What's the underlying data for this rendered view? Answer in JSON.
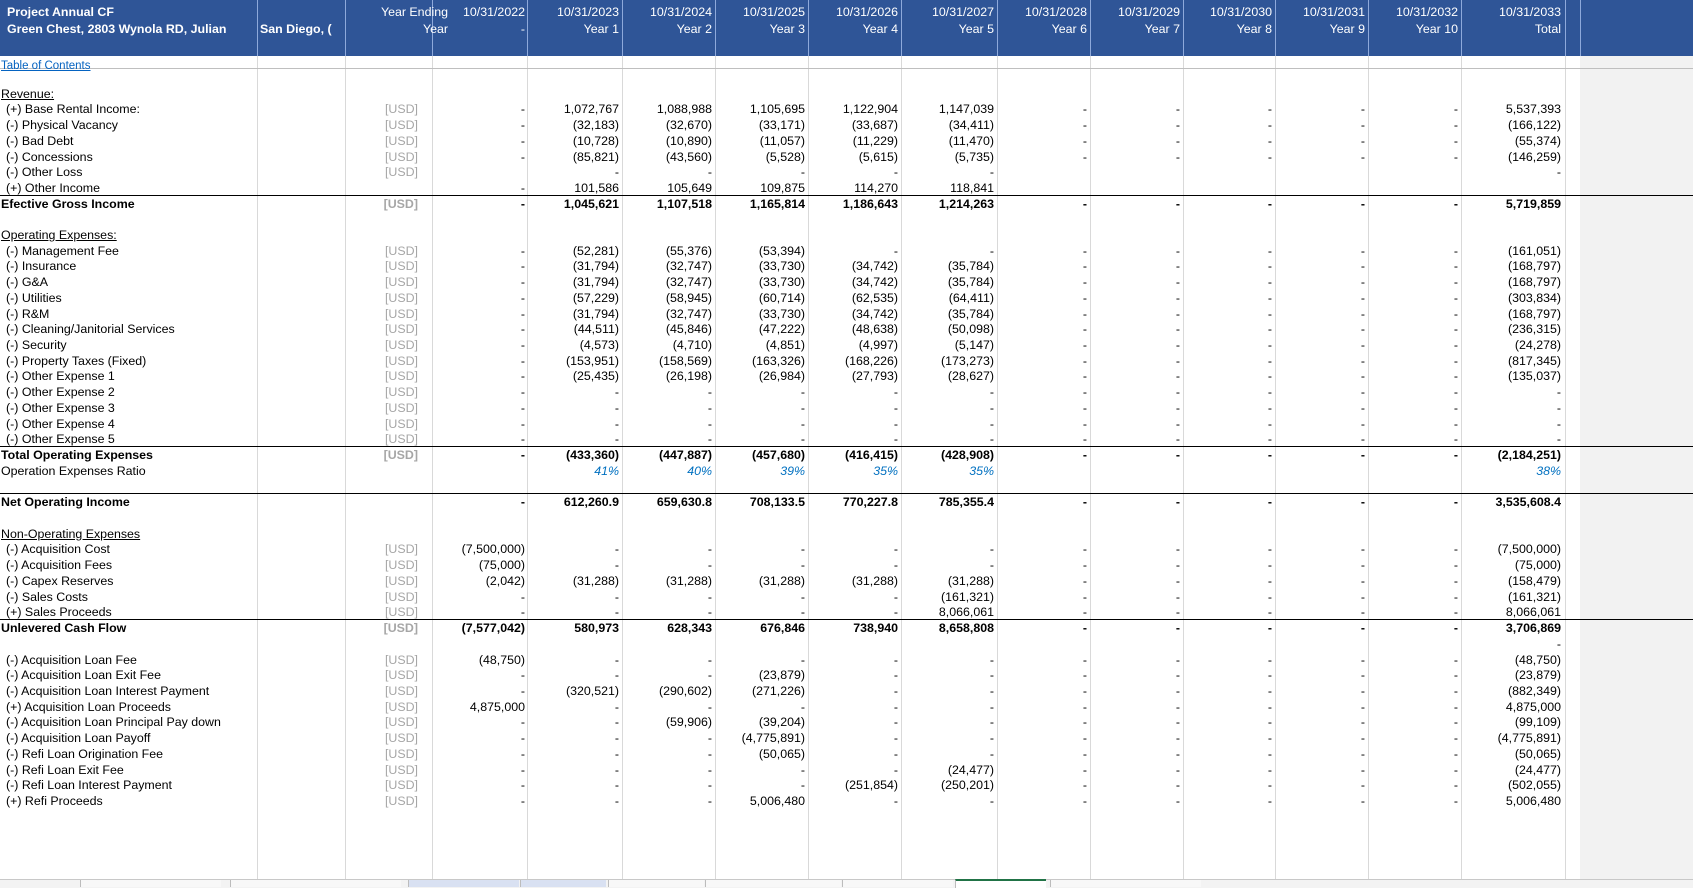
{
  "header": {
    "title": "Project Annual CF",
    "address": "Green Chest, 2803 Wynola RD, Julian",
    "city": "San Diego, (",
    "unit_header_1": "Year Ending",
    "unit_header_2": "Year",
    "periods": [
      {
        "date": "10/31/2022",
        "label": "-"
      },
      {
        "date": "10/31/2023",
        "label": "Year 1"
      },
      {
        "date": "10/31/2024",
        "label": "Year 2"
      },
      {
        "date": "10/31/2025",
        "label": "Year 3"
      },
      {
        "date": "10/31/2026",
        "label": "Year 4"
      },
      {
        "date": "10/31/2027",
        "label": "Year 5"
      },
      {
        "date": "10/31/2028",
        "label": "Year 6"
      },
      {
        "date": "10/31/2029",
        "label": "Year 7"
      },
      {
        "date": "10/31/2030",
        "label": "Year 8"
      },
      {
        "date": "10/31/2031",
        "label": "Year 9"
      },
      {
        "date": "10/31/2032",
        "label": "Year 10"
      },
      {
        "date": "10/31/2033",
        "label": "Total"
      }
    ]
  },
  "links": {
    "toc": "Table of Contents"
  },
  "colors": {
    "header_bg": "#2f5597",
    "ratio_text": "#0070c0",
    "unit_text": "#a6a6a6",
    "total_col_bg": "#f2f2f2"
  },
  "rows": [
    {
      "type": "section",
      "label": "Revenue:"
    },
    {
      "label": "(+) Base Rental Income:",
      "unit": "[USD]",
      "values": [
        "-",
        "1,072,767",
        "1,088,988",
        "1,105,695",
        "1,122,904",
        "1,147,039",
        "-",
        "-",
        "-",
        "-",
        "-",
        "5,537,393"
      ]
    },
    {
      "label": "(-) Physical Vacancy",
      "unit": "[USD]",
      "values": [
        "-",
        "(32,183)",
        "(32,670)",
        "(33,171)",
        "(33,687)",
        "(34,411)",
        "-",
        "-",
        "-",
        "-",
        "-",
        "(166,122)"
      ]
    },
    {
      "label": "(-) Bad Debt",
      "unit": "[USD]",
      "values": [
        "-",
        "(10,728)",
        "(10,890)",
        "(11,057)",
        "(11,229)",
        "(11,470)",
        "-",
        "-",
        "-",
        "-",
        "-",
        "(55,374)"
      ]
    },
    {
      "label": "(-) Concessions",
      "unit": "[USD]",
      "values": [
        "-",
        "(85,821)",
        "(43,560)",
        "(5,528)",
        "(5,615)",
        "(5,735)",
        "-",
        "-",
        "-",
        "-",
        "-",
        "(146,259)"
      ]
    },
    {
      "label": "(-) Other Loss",
      "unit": "[USD]",
      "values": [
        "",
        "-",
        "-",
        "-",
        "-",
        "-",
        "",
        "",
        "",
        "",
        "",
        "-"
      ]
    },
    {
      "label": "(+) Other Income",
      "unit": "",
      "values": [
        "-",
        "101,586",
        "105,649",
        "109,875",
        "114,270",
        "118,841",
        "",
        "",
        "",
        "",
        "",
        ""
      ]
    },
    {
      "type": "total",
      "label": "Efective Gross Income",
      "unit": "[USD]",
      "values": [
        "-",
        "1,045,621",
        "1,107,518",
        "1,165,814",
        "1,186,643",
        "1,214,263",
        "-",
        "-",
        "-",
        "-",
        "-",
        "5,719,859"
      ]
    },
    {
      "type": "blank"
    },
    {
      "type": "section",
      "label": "Operating Expenses:"
    },
    {
      "label": "(-) Management Fee",
      "unit": "[USD]",
      "values": [
        "-",
        "(52,281)",
        "(55,376)",
        "(53,394)",
        "-",
        "-",
        "-",
        "-",
        "-",
        "-",
        "-",
        "(161,051)"
      ]
    },
    {
      "label": "(-) Insurance",
      "unit": "[USD]",
      "values": [
        "-",
        "(31,794)",
        "(32,747)",
        "(33,730)",
        "(34,742)",
        "(35,784)",
        "-",
        "-",
        "-",
        "-",
        "-",
        "(168,797)"
      ]
    },
    {
      "label": "(-) G&A",
      "unit": "[USD]",
      "values": [
        "-",
        "(31,794)",
        "(32,747)",
        "(33,730)",
        "(34,742)",
        "(35,784)",
        "-",
        "-",
        "-",
        "-",
        "-",
        "(168,797)"
      ]
    },
    {
      "label": "(-) Utilities",
      "unit": "[USD]",
      "values": [
        "-",
        "(57,229)",
        "(58,945)",
        "(60,714)",
        "(62,535)",
        "(64,411)",
        "-",
        "-",
        "-",
        "-",
        "-",
        "(303,834)"
      ]
    },
    {
      "label": "(-) R&M",
      "unit": "[USD]",
      "values": [
        "-",
        "(31,794)",
        "(32,747)",
        "(33,730)",
        "(34,742)",
        "(35,784)",
        "-",
        "-",
        "-",
        "-",
        "-",
        "(168,797)"
      ]
    },
    {
      "label": "(-) Cleaning/Janitorial Services",
      "unit": "[USD]",
      "values": [
        "-",
        "(44,511)",
        "(45,846)",
        "(47,222)",
        "(48,638)",
        "(50,098)",
        "-",
        "-",
        "-",
        "-",
        "-",
        "(236,315)"
      ]
    },
    {
      "label": "(-) Security",
      "unit": "[USD]",
      "values": [
        "-",
        "(4,573)",
        "(4,710)",
        "(4,851)",
        "(4,997)",
        "(5,147)",
        "-",
        "-",
        "-",
        "-",
        "-",
        "(24,278)"
      ]
    },
    {
      "label": "(-) Property Taxes (Fixed)",
      "unit": "[USD]",
      "values": [
        "-",
        "(153,951)",
        "(158,569)",
        "(163,326)",
        "(168,226)",
        "(173,273)",
        "-",
        "-",
        "-",
        "-",
        "-",
        "(817,345)"
      ]
    },
    {
      "label": "(-) Other Expense 1",
      "unit": "[USD]",
      "values": [
        "-",
        "(25,435)",
        "(26,198)",
        "(26,984)",
        "(27,793)",
        "(28,627)",
        "-",
        "-",
        "-",
        "-",
        "-",
        "(135,037)"
      ]
    },
    {
      "label": "(-) Other Expense 2",
      "unit": "[USD]",
      "values": [
        "-",
        "-",
        "-",
        "-",
        "-",
        "-",
        "-",
        "-",
        "-",
        "-",
        "-",
        "-"
      ]
    },
    {
      "label": "(-) Other Expense 3",
      "unit": "[USD]",
      "values": [
        "-",
        "-",
        "-",
        "-",
        "-",
        "-",
        "-",
        "-",
        "-",
        "-",
        "-",
        "-"
      ]
    },
    {
      "label": "(-) Other Expense 4",
      "unit": "[USD]",
      "values": [
        "-",
        "-",
        "-",
        "-",
        "-",
        "-",
        "-",
        "-",
        "-",
        "-",
        "-",
        "-"
      ]
    },
    {
      "label": "(-) Other Expense 5",
      "unit": "[USD]",
      "values": [
        "-",
        "-",
        "-",
        "-",
        "-",
        "-",
        "-",
        "-",
        "-",
        "-",
        "-",
        "-"
      ]
    },
    {
      "type": "total",
      "label": "Total Operating Expenses",
      "unit": "[USD]",
      "values": [
        "-",
        "(433,360)",
        "(447,887)",
        "(457,680)",
        "(416,415)",
        "(428,908)",
        "-",
        "-",
        "-",
        "-",
        "-",
        "(2,184,251)"
      ]
    },
    {
      "type": "ratio",
      "label": "Operation Expenses Ratio",
      "unit": "",
      "values": [
        "",
        "41%",
        "40%",
        "39%",
        "35%",
        "35%",
        "",
        "",
        "",
        "",
        "",
        "38%"
      ]
    },
    {
      "type": "blank"
    },
    {
      "type": "total",
      "label": "Net Operating Income",
      "unit": "",
      "values": [
        "-",
        "612,260.9",
        "659,630.8",
        "708,133.5",
        "770,227.8",
        "785,355.4",
        "-",
        "-",
        "-",
        "-",
        "-",
        "3,535,608.4"
      ]
    },
    {
      "type": "blank"
    },
    {
      "type": "section",
      "label": "Non-Operating Expenses"
    },
    {
      "label": "(-) Acquisition Cost",
      "unit": "[USD]",
      "values": [
        "(7,500,000)",
        "-",
        "-",
        "-",
        "-",
        "-",
        "-",
        "-",
        "-",
        "-",
        "-",
        "(7,500,000)"
      ]
    },
    {
      "label": "(-) Acquisition Fees",
      "unit": "[USD]",
      "values": [
        "(75,000)",
        "-",
        "-",
        "-",
        "-",
        "-",
        "-",
        "-",
        "-",
        "-",
        "-",
        "(75,000)"
      ]
    },
    {
      "label": "(-) Capex Reserves",
      "unit": "[USD]",
      "values": [
        "(2,042)",
        "(31,288)",
        "(31,288)",
        "(31,288)",
        "(31,288)",
        "(31,288)",
        "-",
        "-",
        "-",
        "-",
        "-",
        "(158,479)"
      ]
    },
    {
      "label": "(-) Sales Costs",
      "unit": "[USD]",
      "values": [
        "-",
        "-",
        "-",
        "-",
        "-",
        "(161,321)",
        "-",
        "-",
        "-",
        "-",
        "-",
        "(161,321)"
      ]
    },
    {
      "label": "(+) Sales Proceeds",
      "unit": "[USD]",
      "values": [
        "-",
        "-",
        "-",
        "-",
        "-",
        "8,066,061",
        "-",
        "-",
        "-",
        "-",
        "-",
        "8,066,061"
      ]
    },
    {
      "type": "total",
      "label": "Unlevered Cash Flow",
      "unit": "[USD]",
      "values": [
        "(7,577,042)",
        "580,973",
        "628,343",
        "676,846",
        "738,940",
        "8,658,808",
        "-",
        "-",
        "-",
        "-",
        "-",
        "3,706,869"
      ]
    },
    {
      "type": "blank",
      "values": [
        "",
        "",
        "",
        "",
        "",
        "",
        "",
        "",
        "",
        "",
        "",
        "-"
      ]
    },
    {
      "label": "(-) Acquisition Loan Fee",
      "unit": "[USD]",
      "values": [
        "(48,750)",
        "-",
        "-",
        "-",
        "-",
        "-",
        "-",
        "-",
        "-",
        "-",
        "-",
        "(48,750)"
      ]
    },
    {
      "label": "(-) Acquisition Loan Exit Fee",
      "unit": "[USD]",
      "values": [
        "-",
        "-",
        "-",
        "(23,879)",
        "-",
        "-",
        "-",
        "-",
        "-",
        "-",
        "-",
        "(23,879)"
      ]
    },
    {
      "label": "(-) Acquisition Loan Interest Payment",
      "unit": "[USD]",
      "values": [
        "-",
        "(320,521)",
        "(290,602)",
        "(271,226)",
        "-",
        "-",
        "-",
        "-",
        "-",
        "-",
        "-",
        "(882,349)"
      ]
    },
    {
      "label": "(+) Acquisition Loan Proceeds",
      "unit": "[USD]",
      "values": [
        "4,875,000",
        "-",
        "-",
        "-",
        "-",
        "-",
        "-",
        "-",
        "-",
        "-",
        "-",
        "4,875,000"
      ]
    },
    {
      "label": "(-) Acquisition Loan Principal Pay down",
      "unit": "[USD]",
      "values": [
        "-",
        "-",
        "(59,906)",
        "(39,204)",
        "-",
        "-",
        "-",
        "-",
        "-",
        "-",
        "-",
        "(99,109)"
      ]
    },
    {
      "label": "(-) Acquisition  Loan Payoff",
      "unit": "[USD]",
      "values": [
        "-",
        "-",
        "-",
        "(4,775,891)",
        "-",
        "-",
        "-",
        "-",
        "-",
        "-",
        "-",
        "(4,775,891)"
      ]
    },
    {
      "label": "(-) Refi Loan Origination Fee",
      "unit": "[USD]",
      "values": [
        "-",
        "-",
        "-",
        "(50,065)",
        "-",
        "-",
        "-",
        "-",
        "-",
        "-",
        "-",
        "(50,065)"
      ]
    },
    {
      "label": "(-) Refi Loan Exit Fee",
      "unit": "[USD]",
      "values": [
        "-",
        "-",
        "-",
        "-",
        "-",
        "(24,477)",
        "-",
        "-",
        "-",
        "-",
        "-",
        "(24,477)"
      ]
    },
    {
      "label": "(-) Refi Loan Interest Payment",
      "unit": "[USD]",
      "values": [
        "-",
        "-",
        "-",
        "-",
        "(251,854)",
        "(250,201)",
        "-",
        "-",
        "-",
        "-",
        "-",
        "(502,055)"
      ]
    },
    {
      "label": "(+) Refi Proceeds",
      "unit": "[USD]",
      "values": [
        "-",
        "-",
        "-",
        "5,006,480",
        "-",
        "-",
        "-",
        "-",
        "-",
        "-",
        "-",
        "5,006,480"
      ]
    }
  ]
}
